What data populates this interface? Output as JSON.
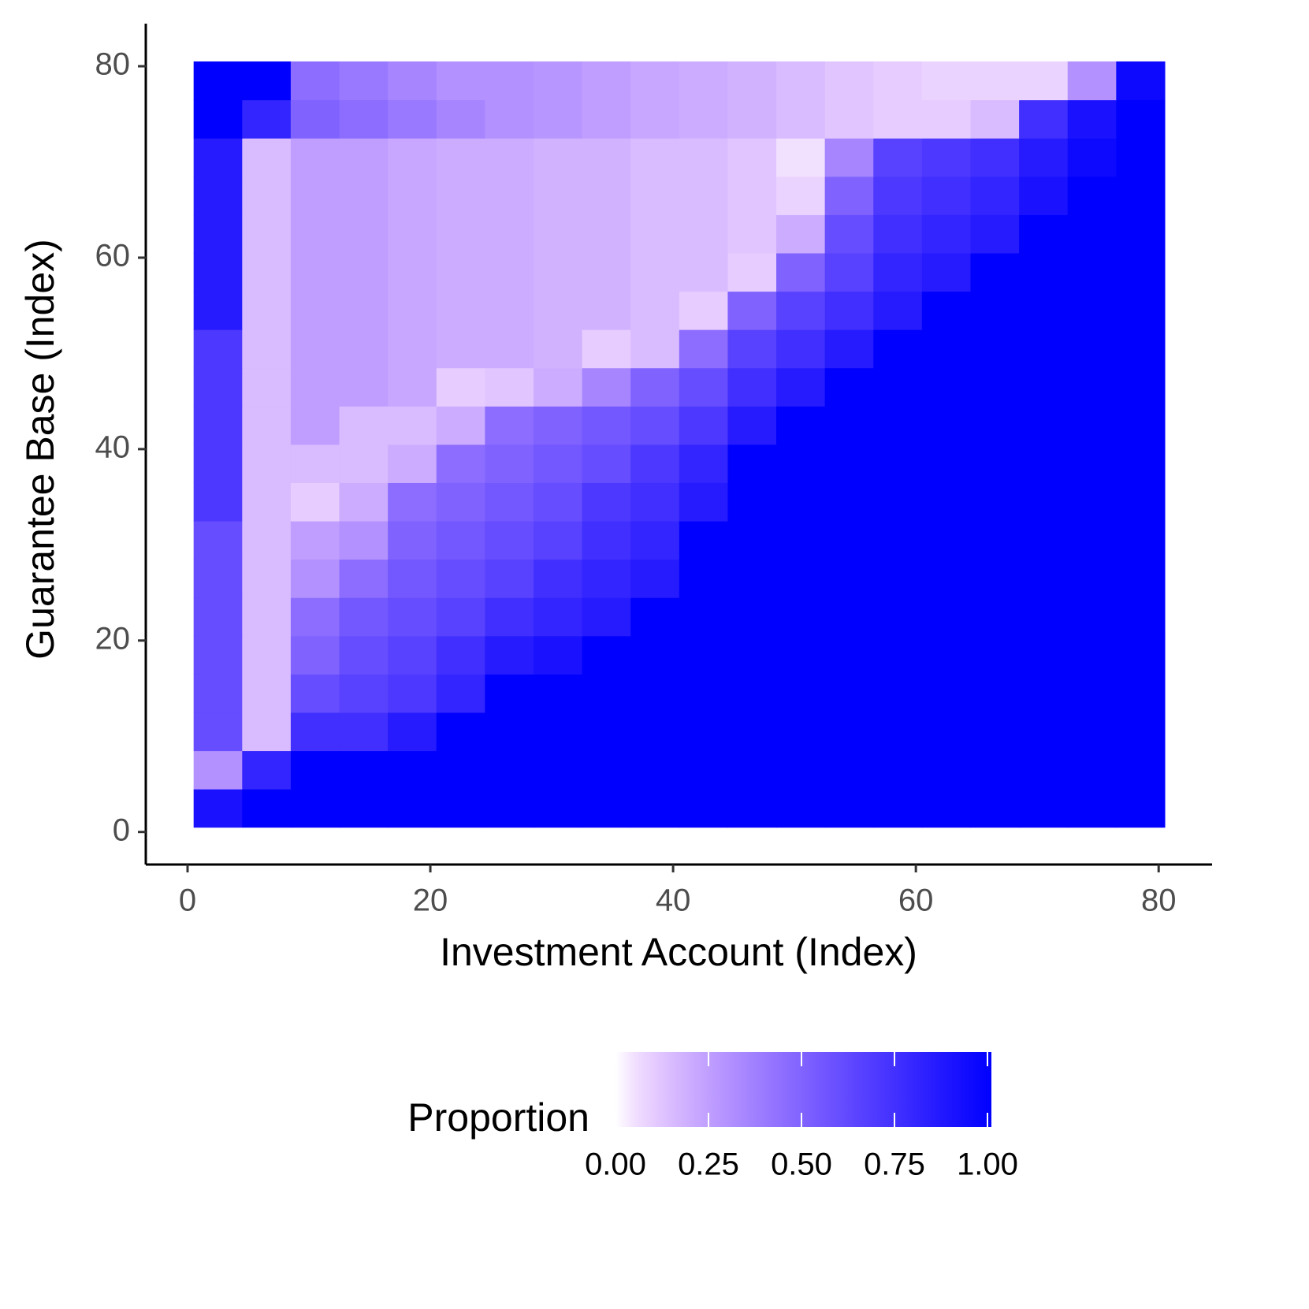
{
  "chart_data": {
    "type": "heatmap",
    "xlabel": "Investment Account (Index)",
    "ylabel": "Guarantee Base (Index)",
    "legend_title": "Proportion",
    "legend_position": "bottom",
    "x": [
      2.5,
      6.5,
      10.5,
      14.5,
      18.5,
      22.5,
      26.5,
      30.5,
      34.5,
      38.5,
      42.5,
      46.5,
      50.5,
      54.5,
      58.5,
      62.5,
      66.5,
      70.5,
      74.5,
      78.5
    ],
    "y": [
      2.5,
      6.5,
      10.5,
      14.5,
      18.5,
      22.5,
      26.5,
      30.5,
      34.5,
      38.5,
      42.5,
      46.5,
      50.5,
      54.5,
      58.5,
      62.5,
      66.5,
      70.5,
      74.5,
      78.5
    ],
    "z": [
      [
        0.9,
        1,
        1,
        1,
        1,
        1,
        1,
        1,
        1,
        1,
        1,
        1,
        1,
        1,
        1,
        1,
        1,
        1,
        1,
        1
      ],
      [
        0.3,
        0.8,
        1,
        1,
        1,
        1,
        1,
        1,
        1,
        1,
        1,
        1,
        1,
        1,
        1,
        1,
        1,
        1,
        1,
        1
      ],
      [
        0.6,
        0.15,
        0.75,
        0.75,
        0.85,
        1,
        1,
        1,
        1,
        1,
        1,
        1,
        1,
        1,
        1,
        1,
        1,
        1,
        1,
        1
      ],
      [
        0.6,
        0.15,
        0.6,
        0.65,
        0.7,
        0.8,
        1,
        1,
        1,
        1,
        1,
        1,
        1,
        1,
        1,
        1,
        1,
        1,
        1,
        1
      ],
      [
        0.6,
        0.15,
        0.5,
        0.6,
        0.65,
        0.75,
        0.85,
        0.9,
        1,
        1,
        1,
        1,
        1,
        1,
        1,
        1,
        1,
        1,
        1,
        1
      ],
      [
        0.6,
        0.15,
        0.45,
        0.55,
        0.6,
        0.65,
        0.75,
        0.8,
        0.85,
        1,
        1,
        1,
        1,
        1,
        1,
        1,
        1,
        1,
        1,
        1
      ],
      [
        0.6,
        0.15,
        0.3,
        0.45,
        0.55,
        0.6,
        0.65,
        0.75,
        0.8,
        0.85,
        1,
        1,
        1,
        1,
        1,
        1,
        1,
        1,
        1,
        1
      ],
      [
        0.6,
        0.15,
        0.25,
        0.3,
        0.5,
        0.55,
        0.6,
        0.65,
        0.75,
        0.8,
        1,
        1,
        1,
        1,
        1,
        1,
        1,
        1,
        1,
        1
      ],
      [
        0.7,
        0.15,
        0.1,
        0.2,
        0.45,
        0.5,
        0.55,
        0.6,
        0.7,
        0.75,
        0.85,
        1,
        1,
        1,
        1,
        1,
        1,
        1,
        1,
        1
      ],
      [
        0.7,
        0.15,
        0.15,
        0.15,
        0.2,
        0.45,
        0.5,
        0.55,
        0.6,
        0.7,
        0.8,
        1,
        1,
        1,
        1,
        1,
        1,
        1,
        1,
        1
      ],
      [
        0.7,
        0.15,
        0.25,
        0.15,
        0.15,
        0.2,
        0.45,
        0.5,
        0.55,
        0.6,
        0.7,
        0.85,
        1,
        1,
        1,
        1,
        1,
        1,
        1,
        1
      ],
      [
        0.7,
        0.15,
        0.25,
        0.25,
        0.22,
        0.1,
        0.12,
        0.2,
        0.35,
        0.5,
        0.6,
        0.75,
        0.85,
        1,
        1,
        1,
        1,
        1,
        1,
        1
      ],
      [
        0.7,
        0.15,
        0.25,
        0.25,
        0.22,
        0.2,
        0.2,
        0.18,
        0.1,
        0.15,
        0.45,
        0.65,
        0.75,
        0.85,
        1,
        1,
        1,
        1,
        1,
        1
      ],
      [
        0.85,
        0.15,
        0.25,
        0.25,
        0.22,
        0.2,
        0.2,
        0.18,
        0.18,
        0.15,
        0.1,
        0.5,
        0.65,
        0.75,
        0.85,
        1,
        1,
        1,
        1,
        1
      ],
      [
        0.85,
        0.15,
        0.25,
        0.25,
        0.22,
        0.2,
        0.2,
        0.18,
        0.18,
        0.15,
        0.15,
        0.1,
        0.5,
        0.65,
        0.8,
        0.85,
        1,
        1,
        1,
        1
      ],
      [
        0.85,
        0.15,
        0.25,
        0.25,
        0.22,
        0.2,
        0.2,
        0.18,
        0.18,
        0.15,
        0.15,
        0.12,
        0.2,
        0.6,
        0.75,
        0.8,
        0.85,
        1,
        1,
        1
      ],
      [
        0.85,
        0.15,
        0.25,
        0.25,
        0.22,
        0.2,
        0.2,
        0.18,
        0.18,
        0.15,
        0.15,
        0.12,
        0.08,
        0.5,
        0.7,
        0.75,
        0.8,
        0.9,
        1,
        1
      ],
      [
        0.85,
        0.15,
        0.25,
        0.25,
        0.22,
        0.2,
        0.2,
        0.18,
        0.18,
        0.15,
        0.15,
        0.12,
        0.05,
        0.35,
        0.65,
        0.7,
        0.75,
        0.85,
        0.95,
        1
      ],
      [
        1,
        0.8,
        0.5,
        0.45,
        0.4,
        0.35,
        0.3,
        0.28,
        0.25,
        0.22,
        0.2,
        0.18,
        0.15,
        0.12,
        0.1,
        0.1,
        0.15,
        0.75,
        0.9,
        1
      ],
      [
        1,
        1,
        0.45,
        0.4,
        0.35,
        0.3,
        0.3,
        0.28,
        0.25,
        0.22,
        0.2,
        0.18,
        0.15,
        0.12,
        0.1,
        0.08,
        0.08,
        0.08,
        0.3,
        0.95
      ]
    ],
    "xlim": [
      -3.44,
      84.4
    ],
    "ylim": [
      -3.4,
      84.45
    ],
    "xticks": [
      0,
      20,
      40,
      60,
      80
    ],
    "yticks": [
      0,
      20,
      40,
      60,
      80
    ],
    "colorbar": {
      "low": "#ffffff",
      "high": "#0000ff",
      "lim": [
        0,
        1
      ],
      "ticks": [
        {
          "value": 0,
          "label": "0.00"
        },
        {
          "value": 0.25,
          "label": "0.25"
        },
        {
          "value": 0.5,
          "label": "0.50"
        },
        {
          "value": 0.75,
          "label": "0.75"
        },
        {
          "value": 1,
          "label": "1.00"
        }
      ]
    }
  }
}
